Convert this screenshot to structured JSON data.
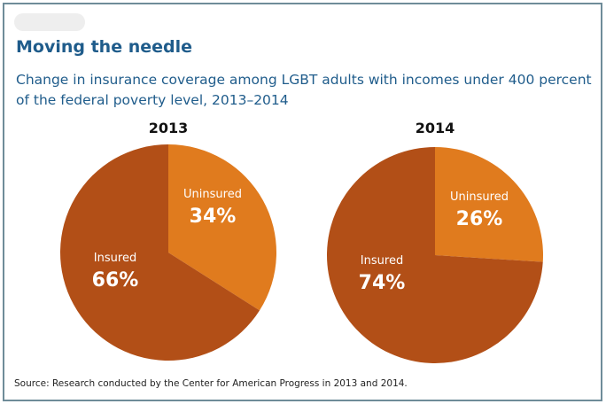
{
  "header": {
    "title": "Moving the needle",
    "subtitle": "Change in insurance coverage among LGBT adults with incomes under 400 percent of the federal poverty level, 2013–2014"
  },
  "source": "Source: Research conducted by the Center for American Progress in 2013 and 2014.",
  "colors": {
    "insured": "#b24f17",
    "uninsured": "#e07b1e",
    "title": "#1f5c8b"
  },
  "chart_data": [
    {
      "type": "pie",
      "title": "2013",
      "slices": [
        {
          "label": "Uninsured",
          "value": 34,
          "display": "34%"
        },
        {
          "label": "Insured",
          "value": 66,
          "display": "66%"
        }
      ]
    },
    {
      "type": "pie",
      "title": "2014",
      "slices": [
        {
          "label": "Uninsured",
          "value": 26,
          "display": "26%"
        },
        {
          "label": "Insured",
          "value": 74,
          "display": "74%"
        }
      ]
    }
  ]
}
